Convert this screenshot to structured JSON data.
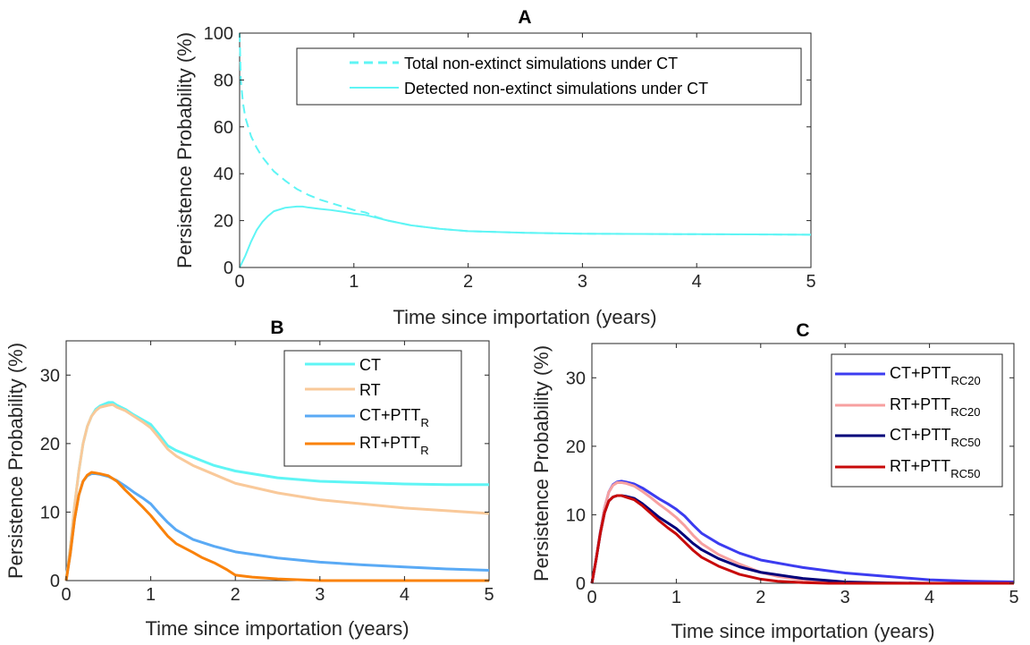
{
  "chart_data": [
    {
      "type": "line",
      "title": "A",
      "xlabel": "Time since importation (years)",
      "ylabel": "Persistence Probability (%)",
      "xlim": [
        0,
        5
      ],
      "ylim": [
        0,
        100
      ],
      "xticks": [
        "0",
        "1",
        "2",
        "3",
        "4",
        "5"
      ],
      "yticks": [
        "0",
        "20",
        "40",
        "60",
        "80",
        "100"
      ],
      "grid": false,
      "legend_position": "top-right",
      "series": [
        {
          "name": "Total non-extinct simulations under CT",
          "color": "#5ff5f5",
          "dash": true,
          "x": [
            0,
            0.01,
            0.03,
            0.05,
            0.1,
            0.15,
            0.2,
            0.3,
            0.4,
            0.5,
            0.6,
            0.7,
            0.8,
            0.9,
            1.0,
            1.1,
            1.2,
            1.3,
            1.5,
            1.75,
            2.0,
            2.5,
            3.0,
            3.5,
            4.0,
            4.5,
            5.0
          ],
          "y": [
            100,
            80,
            70,
            64,
            56,
            51,
            47,
            41,
            37,
            33.5,
            31,
            29,
            27.5,
            26,
            24.5,
            23.5,
            21.5,
            20,
            18,
            16.5,
            15.5,
            14.8,
            14.4,
            14.3,
            14.2,
            14.1,
            14
          ]
        },
        {
          "name": "Detected non-extinct simulations under CT",
          "color": "#5ff5f5",
          "dash": false,
          "x": [
            0,
            0.05,
            0.1,
            0.15,
            0.2,
            0.25,
            0.3,
            0.4,
            0.5,
            0.55,
            0.6,
            0.7,
            0.8,
            0.9,
            1.0,
            1.1,
            1.2,
            1.3,
            1.5,
            1.75,
            2.0,
            2.5,
            3.0,
            3.5,
            4.0,
            4.5,
            5.0
          ],
          "y": [
            0,
            5,
            11,
            16,
            19.5,
            22,
            24,
            25.5,
            26,
            26,
            25.6,
            25,
            24.5,
            23.8,
            23,
            22.4,
            21.2,
            20,
            18,
            16.5,
            15.5,
            14.8,
            14.4,
            14.3,
            14.2,
            14.1,
            14
          ]
        }
      ]
    },
    {
      "type": "line",
      "title": "B",
      "xlabel": "Time since importation (years)",
      "ylabel": "Persistence Probability (%)",
      "xlim": [
        0,
        5
      ],
      "ylim": [
        0,
        35
      ],
      "xticks": [
        "0",
        "1",
        "2",
        "3",
        "4",
        "5"
      ],
      "yticks": [
        "0",
        "10",
        "20",
        "30"
      ],
      "grid": false,
      "legend_position": "top-right",
      "series": [
        {
          "name": "CT",
          "sub": "",
          "color": "#5ff5f5",
          "x": [
            0,
            0.05,
            0.1,
            0.15,
            0.2,
            0.25,
            0.3,
            0.35,
            0.4,
            0.5,
            0.55,
            0.6,
            0.7,
            0.8,
            0.9,
            1.0,
            1.1,
            1.2,
            1.3,
            1.5,
            1.75,
            2.0,
            2.5,
            3.0,
            3.5,
            4.0,
            4.5,
            5.0
          ],
          "y": [
            0,
            5,
            11,
            16,
            20,
            22.5,
            24,
            25,
            25.5,
            26,
            26,
            25.6,
            25,
            24.2,
            23.5,
            22.8,
            21.3,
            19.7,
            19,
            18,
            16.8,
            16,
            15,
            14.5,
            14.3,
            14.1,
            14,
            14
          ]
        },
        {
          "name": "RT",
          "sub": "",
          "color": "#f9c99a",
          "x": [
            0,
            0.05,
            0.1,
            0.15,
            0.2,
            0.25,
            0.3,
            0.35,
            0.4,
            0.5,
            0.55,
            0.6,
            0.7,
            0.8,
            0.9,
            1.0,
            1.1,
            1.2,
            1.3,
            1.5,
            1.75,
            2.0,
            2.5,
            3.0,
            3.5,
            4.0,
            4.5,
            5.0
          ],
          "y": [
            0,
            5,
            11,
            16,
            20,
            22.5,
            24,
            24.8,
            25.3,
            25.6,
            25.7,
            25.3,
            24.8,
            24,
            23.2,
            22.3,
            20.8,
            19.2,
            18.2,
            16.8,
            15.5,
            14.2,
            12.8,
            11.8,
            11.2,
            10.6,
            10.2,
            9.8
          ]
        },
        {
          "name": "CT+PTT",
          "sub": "R",
          "color": "#5aaaf5",
          "x": [
            0,
            0.05,
            0.1,
            0.15,
            0.2,
            0.25,
            0.3,
            0.35,
            0.4,
            0.5,
            0.6,
            0.7,
            0.8,
            0.9,
            1.0,
            1.1,
            1.2,
            1.3,
            1.5,
            1.75,
            2.0,
            2.5,
            3.0,
            3.5,
            4.0,
            4.5,
            5.0
          ],
          "y": [
            0,
            4,
            9,
            12.5,
            14.5,
            15.3,
            15.6,
            15.6,
            15.5,
            15.2,
            14.6,
            13.8,
            12.9,
            12.1,
            11.2,
            9.8,
            8.5,
            7.4,
            6,
            5,
            4.2,
            3.3,
            2.7,
            2.3,
            2,
            1.7,
            1.5
          ]
        },
        {
          "name": "RT+PTT",
          "sub": "R",
          "color": "#fa820a",
          "x": [
            0,
            0.05,
            0.1,
            0.15,
            0.2,
            0.25,
            0.3,
            0.35,
            0.4,
            0.5,
            0.6,
            0.7,
            0.8,
            0.9,
            1.0,
            1.1,
            1.2,
            1.3,
            1.5,
            1.6,
            1.75,
            1.9,
            2.0,
            2.2,
            2.5,
            2.8,
            3.0,
            4.0,
            5.0
          ],
          "y": [
            0,
            4,
            9,
            12.5,
            14.5,
            15.4,
            15.8,
            15.7,
            15.6,
            15.3,
            14.5,
            13.2,
            12,
            10.8,
            9.5,
            8,
            6.5,
            5.4,
            4.1,
            3.4,
            2.6,
            1.6,
            0.8,
            0.5,
            0.25,
            0.1,
            0,
            0,
            0
          ]
        }
      ]
    },
    {
      "type": "line",
      "title": "C",
      "xlabel": "Time since importation (years)",
      "ylabel": "Persistence Probability (%)",
      "xlim": [
        0,
        5
      ],
      "ylim": [
        0,
        35
      ],
      "xticks": [
        "0",
        "1",
        "2",
        "3",
        "4",
        "5"
      ],
      "yticks": [
        "0",
        "10",
        "20",
        "30"
      ],
      "grid": false,
      "legend_position": "top-right",
      "series": [
        {
          "name": "CT+PTT",
          "sub": "RC20",
          "color": "#3c3cf0",
          "x": [
            0,
            0.05,
            0.1,
            0.15,
            0.2,
            0.25,
            0.3,
            0.35,
            0.4,
            0.5,
            0.6,
            0.7,
            0.8,
            0.9,
            1.0,
            1.1,
            1.2,
            1.3,
            1.5,
            1.75,
            2.0,
            2.5,
            3.0,
            3.5,
            4.0,
            4.5,
            5.0
          ],
          "y": [
            0,
            3.5,
            7.5,
            11,
            13.3,
            14.4,
            14.8,
            14.9,
            14.8,
            14.5,
            13.9,
            13.1,
            12.3,
            11.6,
            10.8,
            9.8,
            8.5,
            7.3,
            5.8,
            4.4,
            3.4,
            2.3,
            1.5,
            1,
            0.5,
            0.3,
            0.2
          ]
        },
        {
          "name": "RT+PTT",
          "sub": "RC20",
          "color": "#f7a0a0",
          "x": [
            0,
            0.05,
            0.1,
            0.15,
            0.2,
            0.25,
            0.3,
            0.35,
            0.4,
            0.5,
            0.6,
            0.7,
            0.8,
            0.9,
            1.0,
            1.1,
            1.2,
            1.3,
            1.5,
            1.75,
            2.0,
            2.2,
            2.5,
            2.8,
            3.0,
            4.0,
            5.0
          ],
          "y": [
            0,
            3.5,
            7.5,
            11,
            13.3,
            14.3,
            14.7,
            14.7,
            14.6,
            14.2,
            13.4,
            12.5,
            11.5,
            10.6,
            9.6,
            8.4,
            7,
            5.8,
            4.2,
            2.8,
            1.6,
            1,
            0.5,
            0.2,
            0.1,
            0,
            0
          ]
        },
        {
          "name": "CT+PTT",
          "sub": "RC50",
          "color": "#00007a",
          "x": [
            0,
            0.05,
            0.1,
            0.15,
            0.2,
            0.25,
            0.3,
            0.35,
            0.4,
            0.5,
            0.6,
            0.7,
            0.8,
            0.9,
            1.0,
            1.1,
            1.2,
            1.3,
            1.5,
            1.75,
            2.0,
            2.5,
            3.0,
            3.5,
            4.0,
            5.0
          ],
          "y": [
            0,
            3.5,
            7.3,
            10.3,
            12,
            12.6,
            12.8,
            12.8,
            12.7,
            12.4,
            11.6,
            10.6,
            9.6,
            8.8,
            8,
            6.9,
            5.8,
            4.9,
            3.6,
            2.4,
            1.6,
            0.7,
            0.2,
            0.05,
            0,
            0
          ]
        },
        {
          "name": "RT+PTT",
          "sub": "RC50",
          "color": "#c80a0a",
          "x": [
            0,
            0.05,
            0.1,
            0.15,
            0.2,
            0.25,
            0.3,
            0.35,
            0.4,
            0.5,
            0.6,
            0.7,
            0.8,
            0.9,
            1.0,
            1.1,
            1.2,
            1.3,
            1.5,
            1.75,
            2.0,
            2.2,
            2.5,
            2.8,
            3.0,
            4.0,
            5.0
          ],
          "y": [
            0,
            3.5,
            7.3,
            10.3,
            12,
            12.6,
            12.8,
            12.8,
            12.6,
            12.2,
            11.3,
            10.2,
            9.1,
            8.1,
            7.2,
            6,
            4.8,
            3.8,
            2.5,
            1.3,
            0.6,
            0.3,
            0.1,
            0,
            0,
            0,
            0
          ]
        }
      ]
    }
  ]
}
